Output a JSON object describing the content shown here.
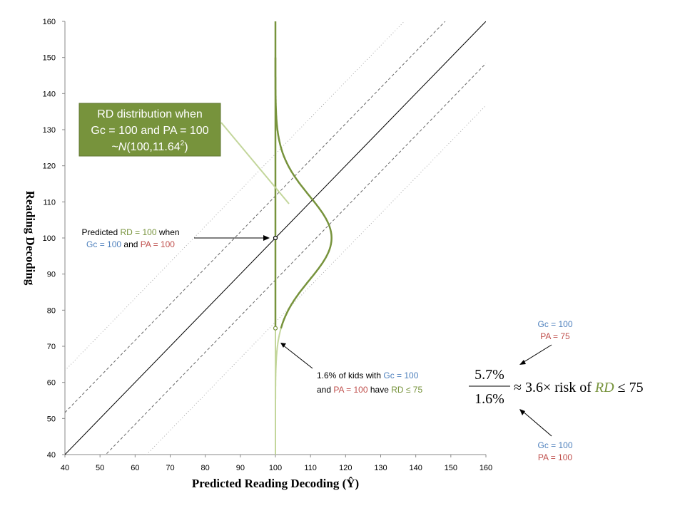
{
  "chart_data": {
    "type": "line",
    "xlabel": "Predicted Reading Decoding (Ŷ)",
    "ylabel": "Reading Decoding",
    "xlim": [
      40,
      160
    ],
    "ylim": [
      40,
      160
    ],
    "x_ticks": [
      40,
      50,
      60,
      70,
      80,
      90,
      100,
      110,
      120,
      130,
      140,
      150,
      160
    ],
    "y_ticks": [
      40,
      50,
      60,
      70,
      80,
      90,
      100,
      110,
      120,
      130,
      140,
      150,
      160
    ],
    "grid": false,
    "series": [
      {
        "style": "solid",
        "color": "#000000",
        "offset": 0
      },
      {
        "style": "dashed",
        "color": "#666666",
        "offset": 11.64
      },
      {
        "style": "dashed",
        "color": "#666666",
        "offset": -11.64
      },
      {
        "style": "dotted",
        "color": "#aaaaaa",
        "offset": 23.28
      },
      {
        "style": "dotted",
        "color": "#aaaaaa",
        "offset": -23.28
      }
    ],
    "distribution": {
      "x": 100,
      "mean": 100,
      "sd": 11.64,
      "color_upper": "#77933c",
      "color_lower": "#c3d69b",
      "cut": 75
    },
    "points": [
      {
        "x": 100,
        "y": 100
      },
      {
        "x": 100,
        "y": 75
      }
    ]
  },
  "callout": {
    "line1": "RD distribution when",
    "line2": "Gc = 100 and PA = 100",
    "line3_prefix": "~",
    "line3_n": "N",
    "line3_args": "(100,11.64",
    "line3_sup": "2",
    "line3_end": ")"
  },
  "pred_ann": {
    "t1": "Predicted ",
    "rd": "RD = 100",
    "t2": " when",
    "gc": "Gc = 100",
    "and": " and ",
    "pa": "PA = 100"
  },
  "pct_ann": {
    "t1": "1.6% of kids with ",
    "gc": "Gc = 100",
    "and1": "and ",
    "pa": "PA = 100",
    "have": " have ",
    "rd": "RD ≤ 75"
  },
  "top_group": {
    "gc": "Gc = 100",
    "pa": "PA = 75"
  },
  "bottom_group": {
    "gc": "Gc = 100",
    "pa": "PA = 100"
  },
  "formula": {
    "numerator": "5.7%",
    "denominator": "1.6%",
    "approx": "≈ 3.6× risk of ",
    "rd": "RD",
    "le": " ≤ 75"
  }
}
